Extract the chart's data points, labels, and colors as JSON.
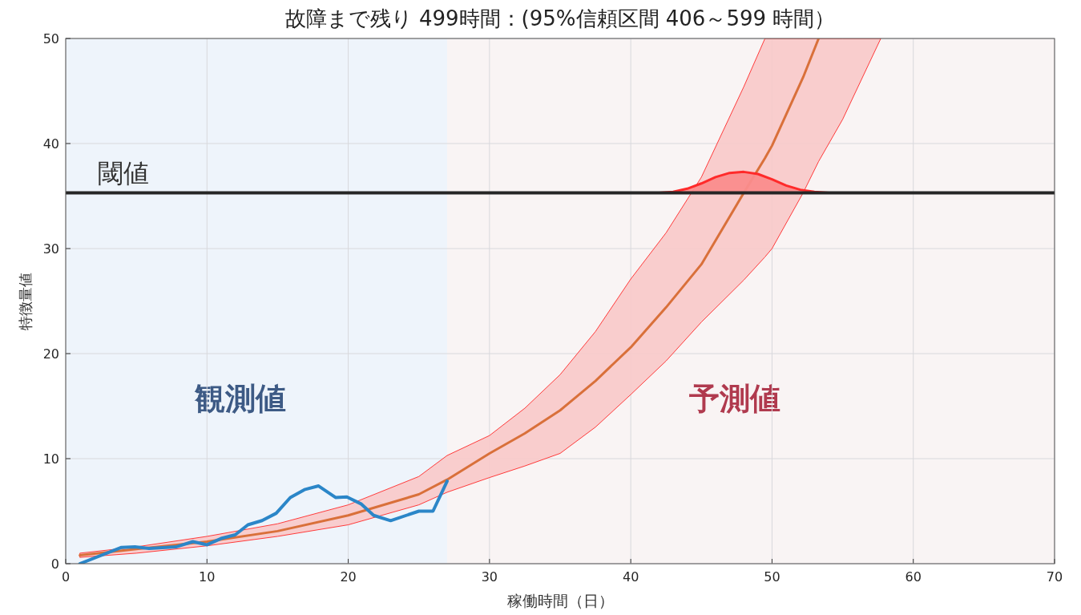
{
  "chart_data": {
    "type": "line",
    "title": "故障まで残り 499時間：(95%信頼区間 406～599 時間）",
    "xlabel": "稼働時間（日）",
    "ylabel": "特徴量値",
    "xlim": [
      0,
      70
    ],
    "xticks": [
      0,
      10,
      20,
      30,
      40,
      50,
      60,
      70
    ],
    "ylim": [
      0,
      50
    ],
    "yticks": [
      0,
      10,
      20,
      30,
      40,
      50
    ],
    "grid": true,
    "bands": [
      {
        "axis": "x",
        "from": 0,
        "to": 27,
        "label": "観測値",
        "color": "#eef4fb"
      },
      {
        "axis": "x",
        "from": 27,
        "to": 70,
        "label": "予測値",
        "color": "#f9f4f4"
      }
    ],
    "ref_lines": [
      {
        "axis": "y",
        "value": 35.3,
        "label": "閾値",
        "color": "#262626"
      }
    ],
    "series": [
      {
        "color": "#d9703a",
        "x": [
          1,
          5,
          10,
          15,
          20,
          25,
          27,
          30,
          32.5,
          35,
          37.5,
          40,
          42.5,
          45,
          48,
          49.5,
          50,
          52.2,
          53.3,
          55,
          57.7
        ],
        "values": [
          0.8,
          1.4,
          2.1,
          3.1,
          4.6,
          6.6,
          8.0,
          10.5,
          12.4,
          14.6,
          17.4,
          20.6,
          24.4,
          28.5,
          35.3,
          38.6,
          39.8,
          46.3,
          50,
          null,
          null
        ],
        "upper": [
          1.0,
          1.6,
          2.6,
          3.8,
          5.6,
          8.3,
          10.3,
          12.2,
          14.8,
          18.0,
          22.1,
          27.1,
          31.5,
          36.8,
          45.4,
          50,
          50,
          50,
          50,
          50,
          50
        ],
        "lower": [
          0.6,
          1.0,
          1.7,
          2.6,
          3.7,
          5.6,
          6.8,
          8.2,
          9.3,
          10.5,
          13.0,
          16.1,
          19.3,
          23.0,
          27.0,
          29.2,
          30,
          35.3,
          38.3,
          42.3,
          50
        ]
      },
      {
        "type": "area",
        "color": "#fa8c8c",
        "x": [
          42,
          43,
          44,
          45,
          46,
          47,
          48,
          49,
          50,
          51,
          52,
          53,
          54,
          55
        ],
        "values": [
          35.3,
          35.4,
          35.7,
          36.2,
          36.8,
          37.2,
          37.3,
          37.1,
          36.6,
          36.0,
          35.6,
          35.4,
          35.3,
          35.3
        ]
      },
      {
        "color": "#2b86c8",
        "x": [
          1.0,
          3.95,
          4.9,
          5.9,
          7.8,
          9.0,
          10.0,
          11.0,
          12.0,
          12.9,
          13.9,
          14.9,
          15.9,
          16.9,
          17.9,
          19.1,
          19.9,
          20.9,
          21.8,
          23.0,
          25.0,
          26.0,
          27.0
        ],
        "values": [
          0,
          1.55,
          1.6,
          1.45,
          1.6,
          2.1,
          1.8,
          2.4,
          2.75,
          3.7,
          4.1,
          4.8,
          6.3,
          7.05,
          7.4,
          6.3,
          6.35,
          5.7,
          4.6,
          4.1,
          5.0,
          5.0,
          7.85
        ]
      }
    ]
  }
}
